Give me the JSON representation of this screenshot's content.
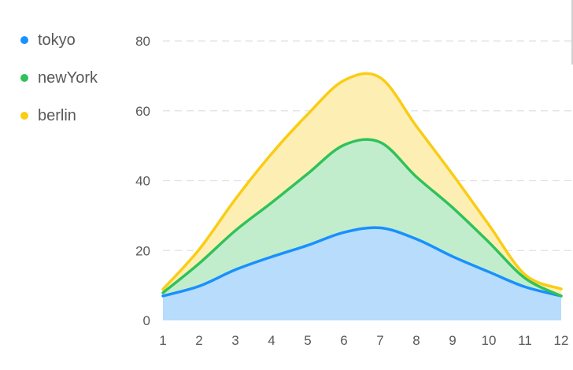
{
  "chart_data": {
    "type": "area",
    "stacked": true,
    "smooth": true,
    "categories": [
      "1",
      "2",
      "3",
      "4",
      "5",
      "6",
      "7",
      "8",
      "9",
      "10",
      "11",
      "12"
    ],
    "series": [
      {
        "name": "tokyo",
        "values": [
          7.0,
          9.8,
          14.5,
          18.2,
          21.5,
          25.2,
          26.5,
          23.3,
          18.3,
          13.9,
          9.6,
          7.0
        ],
        "color": "#1890ff",
        "fill": "#b7dcfc"
      },
      {
        "name": "newYork",
        "values": [
          0.9,
          6.5,
          11.2,
          15.5,
          20.5,
          25.0,
          24.5,
          17.8,
          14.0,
          8.5,
          2.5,
          0.0
        ],
        "color": "#2fc25b",
        "fill": "#c2edcc"
      },
      {
        "name": "berlin",
        "values": [
          1.0,
          4.0,
          9.0,
          14.0,
          17.0,
          18.5,
          18.5,
          14.5,
          9.5,
          5.0,
          1.0,
          2.0
        ],
        "color": "#facc14",
        "fill": "#fdefb4"
      }
    ],
    "ylim": [
      0,
      80
    ],
    "yticks": [
      "0",
      "20",
      "40",
      "60",
      "80"
    ],
    "grid": true,
    "legend_position": "left"
  }
}
